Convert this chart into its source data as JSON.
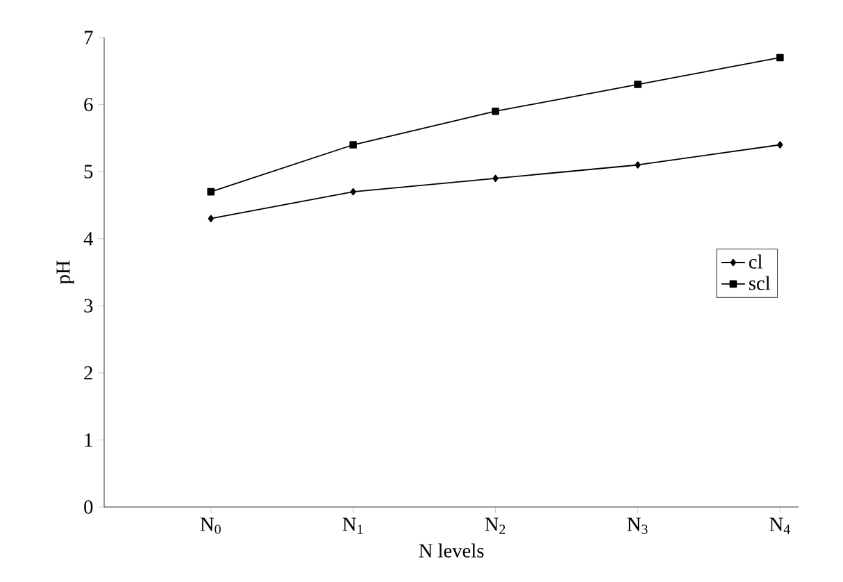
{
  "chart_data": {
    "type": "line",
    "xlabel": "N levels",
    "ylabel": "pH",
    "categories": [
      "N$_{0}$",
      "N$_{1}$",
      "N$_{2}$",
      "N$_{3}$",
      "N$_{4}$"
    ],
    "series": [
      {
        "name": "cl",
        "color": "#000000",
        "marker": "diamond",
        "values": [
          4.3,
          4.7,
          4.9,
          5.1,
          5.4
        ]
      },
      {
        "name": "scl",
        "color": "#000000",
        "marker": "square",
        "values": [
          4.7,
          5.4,
          5.9,
          6.3,
          6.7
        ]
      }
    ],
    "ylim": [
      0,
      7
    ],
    "yticks": [
      0,
      1,
      2,
      3,
      4,
      5,
      6,
      7
    ],
    "grid": false,
    "legend": "right",
    "line_style": "solid"
  }
}
